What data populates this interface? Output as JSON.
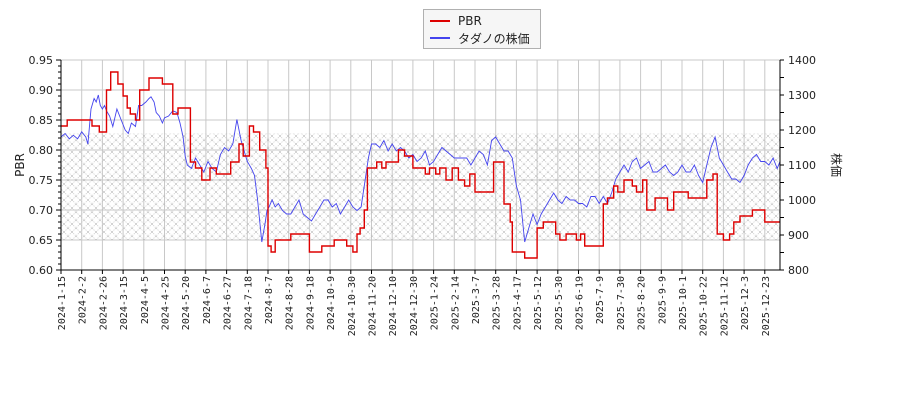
{
  "legend": {
    "items": [
      {
        "label": "PBR",
        "color": "#dd0000"
      },
      {
        "label": "タダノの株価",
        "color": "#4444ee"
      }
    ]
  },
  "axes": {
    "left_label": "PBR",
    "right_label": "株価",
    "left_ticks": [
      "0.60",
      "0.65",
      "0.70",
      "0.75",
      "0.80",
      "0.85",
      "0.90",
      "0.95"
    ],
    "right_ticks": [
      "800",
      "900",
      "1000",
      "1100",
      "1200",
      "1300",
      "1400"
    ]
  },
  "chart_data": {
    "type": "line",
    "title": "",
    "xlabel": "",
    "ylabel": "PBR",
    "ylabel_right": "株価",
    "ylim": [
      0.6,
      0.95
    ],
    "ylim_right": [
      800,
      1400
    ],
    "grid": true,
    "legend_position": "top-center",
    "shaded_band": {
      "ymin": 0.65,
      "ymax": 0.828,
      "pattern": "cross-hatch",
      "axis": "PBR"
    },
    "x_tick_labels": [
      "2024-1-15",
      "2024-2-2",
      "2024-2-26",
      "2024-3-15",
      "2024-4-5",
      "2024-4-25",
      "2024-5-20",
      "2024-6-7",
      "2024-6-27",
      "2024-7-18",
      "2024-8-7",
      "2024-8-28",
      "2024-9-18",
      "2024-10-9",
      "2024-10-30",
      "2024-11-20",
      "2024-12-10",
      "2024-12-30",
      "2025-1-24",
      "2025-2-14",
      "2025-3-7",
      "2025-3-28",
      "2025-4-17",
      "2025-5-12",
      "2025-5-30",
      "2025-6-19",
      "2025-7-9",
      "2025-7-30",
      "2025-8-20",
      "2025-9-9",
      "2025-10-1",
      "2025-10-22",
      "2025-11-12",
      "2025-12-3",
      "2025-12-23"
    ],
    "series": [
      {
        "name": "PBR",
        "axis": "left",
        "color": "#dd0000",
        "step": true,
        "x_index": [
          0,
          0.3,
          0.9,
          1.5,
          1.7,
          1.85,
          2.2,
          2.4,
          2.75,
          3.0,
          3.2,
          3.35,
          3.6,
          3.8,
          4.25,
          4.45,
          4.9,
          5.4,
          5.65,
          5.75,
          6.0,
          6.25,
          6.5,
          6.8,
          7.2,
          7.5,
          7.8,
          8.2,
          8.6,
          8.8,
          9.1,
          9.3,
          9.6,
          9.9,
          10.0,
          10.15,
          10.35,
          10.5,
          11.1,
          11.5,
          12.0,
          12.3,
          12.6,
          13.2,
          13.5,
          13.8,
          14.1,
          14.3,
          14.45,
          14.65,
          14.8,
          15.25,
          15.5,
          15.7,
          16.3,
          16.6,
          17.0,
          17.6,
          17.8,
          18.1,
          18.3,
          18.6,
          18.9,
          19.2,
          19.5,
          19.75,
          20.0,
          20.3,
          20.9,
          21.1,
          21.4,
          21.7,
          21.8,
          22.1,
          22.4,
          22.7,
          23.0,
          23.3,
          23.9,
          24.1,
          24.4,
          24.7,
          24.9,
          25.1,
          25.3,
          25.6,
          26.2,
          26.4,
          26.7,
          26.9,
          27.2,
          27.6,
          27.8,
          28.1,
          28.3,
          28.7,
          28.9,
          29.3,
          29.6,
          30.3,
          30.9,
          31.2,
          31.5,
          31.7,
          32.0,
          32.3,
          32.5,
          32.8,
          33.0,
          33.4,
          33.7,
          34.0,
          34.4,
          34.8
        ],
        "values": [
          0.84,
          0.85,
          0.85,
          0.84,
          0.84,
          0.83,
          0.9,
          0.93,
          0.91,
          0.89,
          0.87,
          0.86,
          0.85,
          0.9,
          0.92,
          0.92,
          0.91,
          0.86,
          0.87,
          0.87,
          0.87,
          0.78,
          0.77,
          0.75,
          0.77,
          0.76,
          0.76,
          0.78,
          0.81,
          0.79,
          0.84,
          0.83,
          0.8,
          0.77,
          0.64,
          0.63,
          0.65,
          0.65,
          0.66,
          0.66,
          0.63,
          0.63,
          0.64,
          0.65,
          0.65,
          0.64,
          0.63,
          0.66,
          0.67,
          0.7,
          0.77,
          0.78,
          0.77,
          0.78,
          0.8,
          0.79,
          0.77,
          0.76,
          0.77,
          0.76,
          0.77,
          0.75,
          0.77,
          0.75,
          0.74,
          0.76,
          0.73,
          0.73,
          0.78,
          0.78,
          0.71,
          0.68,
          0.63,
          0.63,
          0.62,
          0.62,
          0.67,
          0.68,
          0.66,
          0.65,
          0.66,
          0.66,
          0.65,
          0.66,
          0.64,
          0.64,
          0.71,
          0.72,
          0.74,
          0.73,
          0.75,
          0.74,
          0.73,
          0.75,
          0.7,
          0.72,
          0.72,
          0.7,
          0.73,
          0.72,
          0.72,
          0.75,
          0.76,
          0.66,
          0.65,
          0.66,
          0.68,
          0.69,
          0.69,
          0.7,
          0.7,
          0.68,
          0.68,
          0.68
        ],
        "x_last": 35.0
      },
      {
        "name": "タダノの株価",
        "axis": "right",
        "color": "#4444ee",
        "x_index": [
          0,
          0.2,
          0.4,
          0.6,
          0.8,
          1.0,
          1.2,
          1.3,
          1.45,
          1.6,
          1.7,
          1.8,
          1.9,
          2.0,
          2.1,
          2.2,
          2.35,
          2.5,
          2.7,
          2.9,
          3.1,
          3.25,
          3.4,
          3.6,
          3.75,
          3.9,
          4.1,
          4.25,
          4.35,
          4.5,
          4.6,
          4.75,
          4.9,
          5.0,
          5.2,
          5.4,
          5.6,
          5.75,
          5.9,
          6.0,
          6.1,
          6.3,
          6.5,
          6.7,
          6.9,
          7.1,
          7.3,
          7.5,
          7.7,
          7.9,
          8.1,
          8.3,
          8.5,
          8.7,
          8.9,
          9.0,
          9.2,
          9.35,
          9.5,
          9.7,
          9.85,
          9.95,
          10.05,
          10.2,
          10.35,
          10.5,
          10.7,
          10.9,
          11.1,
          11.3,
          11.5,
          11.7,
          11.9,
          12.1,
          12.3,
          12.5,
          12.7,
          12.9,
          13.1,
          13.3,
          13.5,
          13.7,
          13.9,
          14.1,
          14.3,
          14.5,
          14.7,
          14.85,
          15.0,
          15.2,
          15.4,
          15.6,
          15.8,
          16.0,
          16.2,
          16.4,
          16.6,
          16.8,
          17.0,
          17.2,
          17.4,
          17.6,
          17.8,
          18.0,
          18.2,
          18.4,
          18.6,
          18.8,
          19.0,
          19.2,
          19.4,
          19.6,
          19.8,
          20.0,
          20.2,
          20.4,
          20.6,
          20.8,
          21.0,
          21.2,
          21.4,
          21.6,
          21.8,
          21.9,
          22.0,
          22.2,
          22.4,
          22.6,
          22.8,
          23.0,
          23.2,
          23.4,
          23.6,
          23.8,
          24.0,
          24.2,
          24.4,
          24.6,
          24.8,
          25.0,
          25.2,
          25.4,
          25.6,
          25.8,
          26.0,
          26.2,
          26.4,
          26.6,
          26.8,
          27.0,
          27.2,
          27.4,
          27.6,
          27.8,
          28.0,
          28.2,
          28.4,
          28.6,
          28.8,
          29.0,
          29.2,
          29.4,
          29.6,
          29.8,
          30.0,
          30.2,
          30.4,
          30.6,
          30.8,
          31.0,
          31.2,
          31.4,
          31.6,
          31.8,
          32.0,
          32.2,
          32.4,
          32.6,
          32.8,
          33.0,
          33.2,
          33.4,
          33.6,
          33.8,
          34.0,
          34.2,
          34.4,
          34.6,
          34.8,
          35.0
        ],
        "values": [
          1180,
          1190,
          1175,
          1185,
          1175,
          1195,
          1180,
          1160,
          1260,
          1290,
          1280,
          1300,
          1270,
          1260,
          1270,
          1255,
          1240,
          1210,
          1260,
          1230,
          1200,
          1190,
          1220,
          1210,
          1270,
          1270,
          1280,
          1290,
          1295,
          1280,
          1250,
          1240,
          1220,
          1235,
          1240,
          1255,
          1250,
          1220,
          1180,
          1125,
          1100,
          1090,
          1120,
          1100,
          1080,
          1110,
          1090,
          1080,
          1130,
          1150,
          1140,
          1160,
          1230,
          1170,
          1130,
          1110,
          1090,
          1070,
          1000,
          880,
          930,
          970,
          980,
          1000,
          980,
          990,
          970,
          960,
          960,
          980,
          1000,
          960,
          950,
          940,
          960,
          980,
          1000,
          1000,
          980,
          990,
          960,
          980,
          1000,
          980,
          970,
          980,
          1060,
          1120,
          1160,
          1160,
          1150,
          1170,
          1140,
          1160,
          1140,
          1150,
          1140,
          1120,
          1130,
          1110,
          1120,
          1140,
          1100,
          1110,
          1130,
          1150,
          1140,
          1130,
          1120,
          1120,
          1120,
          1120,
          1100,
          1120,
          1140,
          1130,
          1100,
          1170,
          1180,
          1160,
          1140,
          1140,
          1120,
          1080,
          1040,
          1000,
          880,
          920,
          960,
          930,
          960,
          980,
          1000,
          1020,
          1000,
          990,
          1010,
          1000,
          1000,
          990,
          990,
          980,
          1010,
          1010,
          990,
          1010,
          990,
          1020,
          1060,
          1080,
          1100,
          1080,
          1110,
          1120,
          1090,
          1100,
          1110,
          1080,
          1080,
          1090,
          1100,
          1080,
          1070,
          1080,
          1100,
          1080,
          1080,
          1100,
          1070,
          1050,
          1100,
          1150,
          1180,
          1120,
          1100,
          1080,
          1060,
          1060,
          1050,
          1070,
          1100,
          1120,
          1130,
          1110,
          1110,
          1100,
          1120,
          1090,
          1120,
          1130,
          1110
        ]
      }
    ]
  }
}
